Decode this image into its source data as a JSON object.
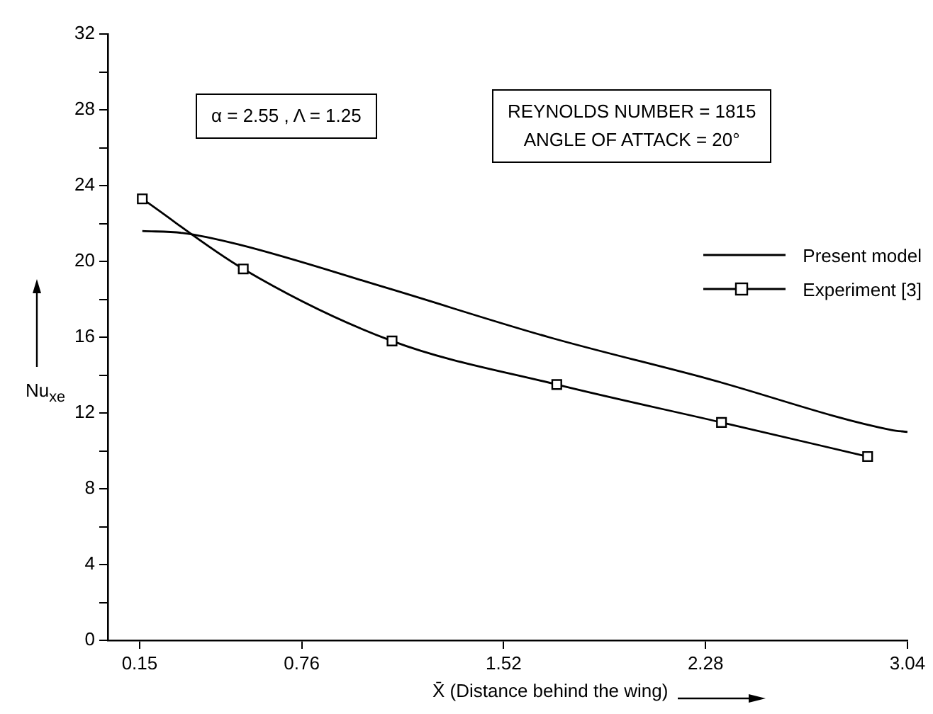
{
  "chart_data": {
    "type": "line",
    "xlabel": "X̄ (Distance behind the wing)",
    "ylabel": "Nu$_{xe}$",
    "series": [
      {
        "name": "Present model",
        "color": "#000000",
        "marker": "none",
        "x": [
          0.16,
          0.31,
          0.52,
          1.08,
          1.69,
          2.29,
          2.98,
          3.04
        ],
        "values": [
          21.6,
          21.5,
          20.9,
          18.6,
          16.0,
          13.8,
          11.1,
          11.0
        ]
      },
      {
        "name": "Experiment [3]",
        "color": "#000000",
        "marker": "square",
        "x": [
          0.16,
          0.54,
          1.1,
          1.72,
          2.34,
          2.89
        ],
        "values": [
          23.3,
          19.6,
          15.8,
          13.5,
          11.5,
          9.7
        ]
      }
    ],
    "xlim": [
      0.03,
      3.04
    ],
    "xticks": [
      0.15,
      0.76,
      1.52,
      2.28,
      3.04
    ],
    "ylim": [
      0,
      32
    ],
    "yticks": [
      0,
      {
        "value": 2,
        "label": null
      },
      4,
      {
        "value": 6,
        "label": null
      },
      8,
      {
        "value": 10,
        "label": null
      },
      12,
      {
        "value": 14,
        "label": null
      },
      16,
      {
        "value": 18,
        "label": null
      },
      20,
      {
        "value": 22,
        "label": null
      },
      24,
      {
        "value": 26,
        "label": null
      },
      28,
      {
        "value": 30,
        "label": null
      },
      32
    ],
    "grid": false,
    "legend": "top right",
    "line_style": "solid",
    "annotations": [
      "α = 2.55 , Λ = 1.25",
      "REYNOLDS NUMBER = 1815\nANGLE OF ATTACK = 20°"
    ]
  }
}
